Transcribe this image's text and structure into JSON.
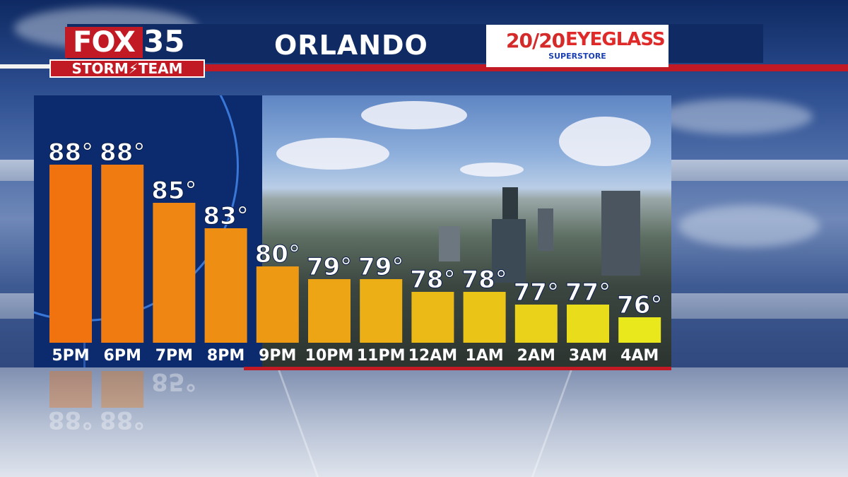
{
  "header": {
    "logo_fox": "FOX",
    "logo_number": "35",
    "logo_team": "STORM⚡TEAM",
    "city": "ORLANDO",
    "sponsor": {
      "number": "20/20",
      "name": "EYEGLASS",
      "tagline": "SUPERSTORE"
    }
  },
  "colors": {
    "header_navy": "#102a63",
    "accent_red": "#c21a24",
    "bar_hot": "#f07a10",
    "bar_warm": "#f0b214",
    "bar_mild": "#e8de1c"
  },
  "chart_data": {
    "type": "bar",
    "title": "",
    "xlabel": "",
    "ylabel": "",
    "categories": [
      "5PM",
      "6PM",
      "7PM",
      "8PM",
      "9PM",
      "10PM",
      "11PM",
      "12AM",
      "1AM",
      "2AM",
      "3AM",
      "4AM"
    ],
    "values": [
      88,
      88,
      85,
      83,
      80,
      79,
      79,
      78,
      78,
      77,
      77,
      76
    ],
    "value_labels": [
      "88°",
      "88°",
      "85°",
      "83°",
      "80°",
      "79°",
      "79°",
      "78°",
      "78°",
      "77°",
      "77°",
      "76°"
    ],
    "unit": "°F",
    "ylim": [
      74,
      88
    ],
    "grid": false,
    "legend": "none"
  }
}
